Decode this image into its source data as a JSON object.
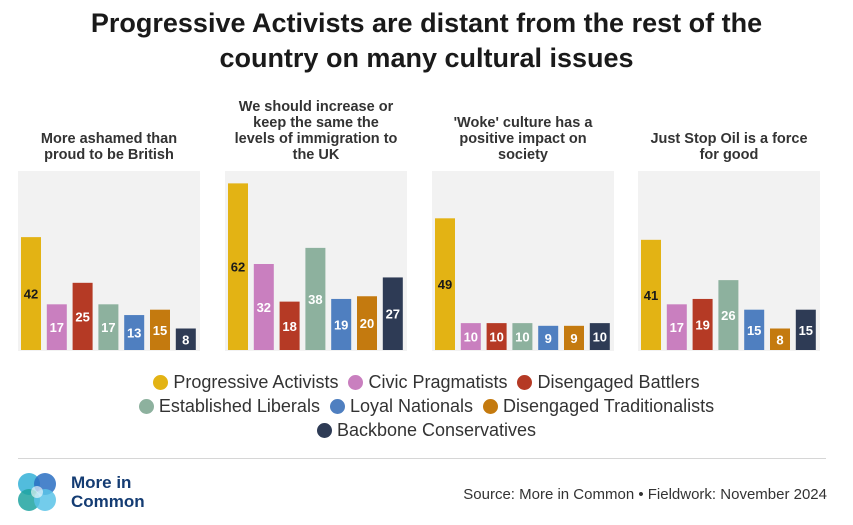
{
  "title": "Progressive Activists are distant from the rest of the\ncountry on many cultural issues",
  "segments": [
    {
      "name": "Progressive Activists",
      "color": "#E3B314"
    },
    {
      "name": "Civic Pragmatists",
      "color": "#C97FBF"
    },
    {
      "name": "Disengaged Battlers",
      "color": "#B53A25"
    },
    {
      "name": "Established Liberals",
      "color": "#8DB19E"
    },
    {
      "name": "Loyal Nationals",
      "color": "#4F7FC0"
    },
    {
      "name": "Disengaged Traditionalists",
      "color": "#C47A0F"
    },
    {
      "name": "Backbone Conservatives",
      "color": "#2E3B55"
    }
  ],
  "chart_data": [
    {
      "type": "bar",
      "title": "More ashamed than\nproud to be British",
      "categories": [
        "Progressive Activists",
        "Civic Pragmatists",
        "Disengaged Battlers",
        "Established Liberals",
        "Loyal Nationals",
        "Disengaged Traditionalists",
        "Backbone Conservatives"
      ],
      "values": [
        42,
        17,
        25,
        17,
        13,
        15,
        8
      ],
      "ylim": [
        0,
        64
      ]
    },
    {
      "type": "bar",
      "title": "We should increase or\nkeep the same the\nlevels of immigration to\nthe UK",
      "categories": [
        "Progressive Activists",
        "Civic Pragmatists",
        "Disengaged Battlers",
        "Established Liberals",
        "Loyal Nationals",
        "Disengaged Traditionalists",
        "Backbone Conservatives"
      ],
      "values": [
        62,
        32,
        18,
        38,
        19,
        20,
        27
      ],
      "ylim": [
        0,
        64
      ]
    },
    {
      "type": "bar",
      "title": "'Woke' culture has a\npositive impact on\nsociety",
      "categories": [
        "Progressive Activists",
        "Civic Pragmatists",
        "Disengaged Battlers",
        "Established Liberals",
        "Loyal Nationals",
        "Disengaged Traditionalists",
        "Backbone Conservatives"
      ],
      "values": [
        49,
        10,
        10,
        10,
        9,
        9,
        10
      ],
      "ylim": [
        0,
        64
      ]
    },
    {
      "type": "bar",
      "title": "Just Stop Oil is a force\nfor good",
      "categories": [
        "Progressive Activists",
        "Civic Pragmatists",
        "Disengaged Battlers",
        "Established Liberals",
        "Loyal Nationals",
        "Disengaged Traditionalists",
        "Backbone Conservatives"
      ],
      "values": [
        41,
        17,
        19,
        26,
        15,
        8,
        15
      ],
      "ylim": [
        0,
        64
      ]
    }
  ],
  "footer": {
    "logo_text": "More in\nCommon",
    "source": "Source: More in Common • Fieldwork: November 2024"
  }
}
